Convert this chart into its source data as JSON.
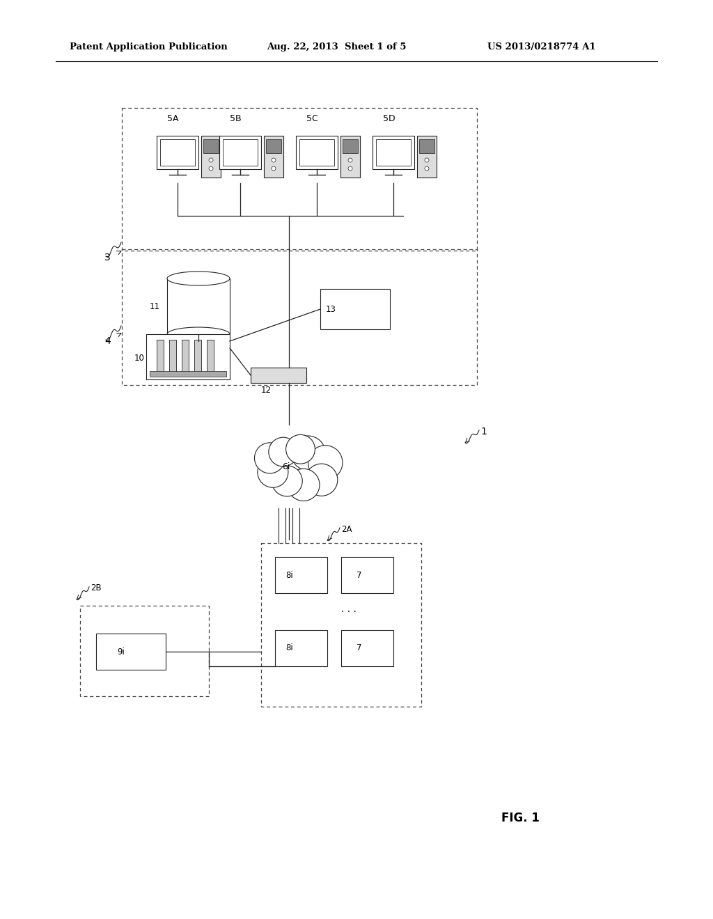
{
  "bg_color": "#ffffff",
  "header_left": "Patent Application Publication",
  "header_mid": "Aug. 22, 2013  Sheet 1 of 5",
  "header_right": "US 2013/0218774 A1",
  "fig_label": "FIG. 1",
  "line_color": "#222222",
  "box_color": "#222222"
}
